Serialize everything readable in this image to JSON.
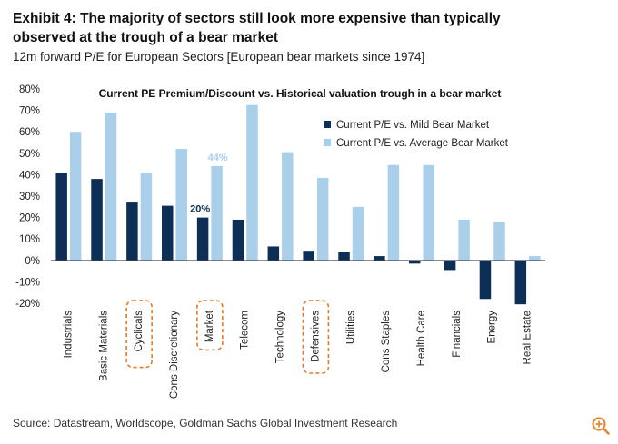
{
  "header": {
    "title": "Exhibit 4: The majority of sectors still look more expensive than typically observed at the trough of a bear market",
    "subtitle": "12m forward P/E for European Sectors [European bear markets since 1974]"
  },
  "footer": {
    "source": "Source: Datastream, Worldscope, Goldman Sachs Global Investment Research"
  },
  "icons": {
    "zoom": "zoom-in-icon"
  },
  "colors": {
    "dark": "#0d2f57",
    "light": "#a9cfeb",
    "highlight_box": "#e07a2a",
    "zoom": "#e5883a"
  },
  "chart_data": {
    "type": "bar",
    "title": "Current PE Premium/Discount vs. Historical valuation trough in a bear market",
    "categories": [
      "Industrials",
      "Basic Materials",
      "Cyclicals",
      "Cons Discretionary",
      "Market",
      "Telecom",
      "Technology",
      "Defensives",
      "Utilities",
      "Cons Staples",
      "Health Care",
      "Financials",
      "Energy",
      "Real Estate"
    ],
    "highlighted": [
      "Cyclicals",
      "Market",
      "Defensives"
    ],
    "series": [
      {
        "name": "Current P/E vs. Mild Bear Market",
        "values": [
          41,
          38,
          27,
          25.5,
          20,
          19,
          6.5,
          4.5,
          4,
          2,
          -1.5,
          -4.5,
          -18,
          -20.5
        ]
      },
      {
        "name": "Current P/E vs. Average Bear Market",
        "values": [
          60,
          69,
          41,
          52,
          44,
          72.5,
          50.5,
          38.5,
          25,
          44.5,
          44.5,
          19,
          18,
          2
        ]
      }
    ],
    "annotations": [
      {
        "category": "Market",
        "series": 0,
        "text": "20%"
      },
      {
        "category": "Market",
        "series": 1,
        "text": "44%"
      }
    ],
    "ylim": [
      -20,
      80
    ],
    "yticks": [
      -20,
      -10,
      0,
      10,
      20,
      30,
      40,
      50,
      60,
      70,
      80
    ],
    "ytick_labels": [
      "-20%",
      "-10%",
      "0%",
      "10%",
      "20%",
      "30%",
      "40%",
      "50%",
      "60%",
      "70%",
      "80%"
    ],
    "legend_position": "top-right",
    "grid": false
  }
}
